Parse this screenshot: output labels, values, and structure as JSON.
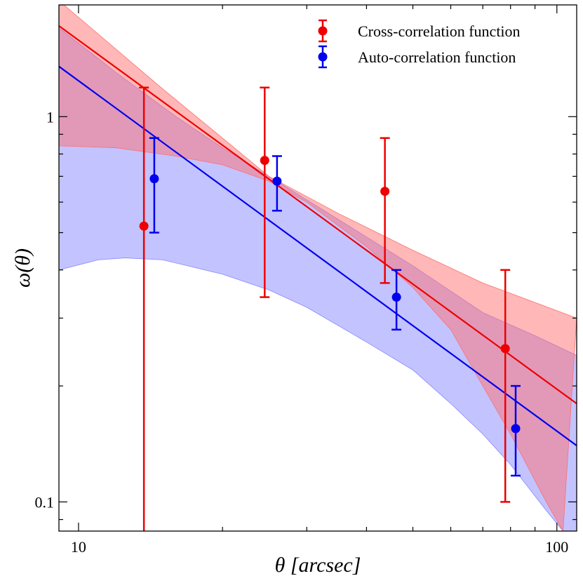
{
  "chart_data": {
    "type": "scatter",
    "xlabel": "θ [arcsec]",
    "ylabel": "ω(θ)",
    "xscale": "log",
    "yscale": "log",
    "xlim": [
      9.1,
      110
    ],
    "ylim": [
      0.084,
      1.95
    ],
    "grid": false,
    "legend_position": "top-right",
    "x_ticks": [
      {
        "value": 10,
        "label": "10"
      },
      {
        "value": 100,
        "label": "100"
      }
    ],
    "y_ticks": [
      {
        "value": 1,
        "label": "1"
      },
      {
        "value": 0.1,
        "label": "0.1"
      }
    ],
    "series": [
      {
        "name": "Cross-correlation function",
        "color": "#ee0000",
        "band_color": "#ff6f6f",
        "points": [
          {
            "x": 13.7,
            "y": 0.52,
            "yerr_low": 0.084,
            "yerr_high": 1.19
          },
          {
            "x": 24.5,
            "y": 0.77,
            "yerr_low": 0.34,
            "yerr_high": 1.19
          },
          {
            "x": 43.7,
            "y": 0.64,
            "yerr_low": 0.37,
            "yerr_high": 0.88
          },
          {
            "x": 78.0,
            "y": 0.25,
            "yerr_low": 0.1,
            "yerr_high": 0.4
          }
        ],
        "fit_line": [
          {
            "x": 9.1,
            "y": 1.72
          },
          {
            "x": 110,
            "y": 0.18
          }
        ],
        "band_upper": [
          {
            "x": 9.1,
            "y": 2.0
          },
          {
            "x": 15,
            "y": 1.18
          },
          {
            "x": 20,
            "y": 0.88
          },
          {
            "x": 25,
            "y": 0.7
          },
          {
            "x": 35,
            "y": 0.56
          },
          {
            "x": 50,
            "y": 0.45
          },
          {
            "x": 70,
            "y": 0.37
          },
          {
            "x": 110,
            "y": 0.3
          }
        ],
        "band_lower": [
          {
            "x": 9.1,
            "y": 0.84
          },
          {
            "x": 12,
            "y": 0.83
          },
          {
            "x": 16,
            "y": 0.79
          },
          {
            "x": 20,
            "y": 0.75
          },
          {
            "x": 25,
            "y": 0.68
          },
          {
            "x": 30,
            "y": 0.6
          },
          {
            "x": 40,
            "y": 0.46
          },
          {
            "x": 50,
            "y": 0.36
          },
          {
            "x": 60,
            "y": 0.28
          },
          {
            "x": 70,
            "y": 0.2
          },
          {
            "x": 80,
            "y": 0.15
          },
          {
            "x": 95,
            "y": 0.1
          },
          {
            "x": 103,
            "y": 0.084
          }
        ]
      },
      {
        "name": "Auto-correlation function",
        "color": "#0000ee",
        "band_color": "#8888ff",
        "points": [
          {
            "x": 14.4,
            "y": 0.69,
            "yerr_low": 0.5,
            "yerr_high": 0.88
          },
          {
            "x": 26.0,
            "y": 0.68,
            "yerr_low": 0.57,
            "yerr_high": 0.79
          },
          {
            "x": 46.2,
            "y": 0.34,
            "yerr_low": 0.28,
            "yerr_high": 0.4
          },
          {
            "x": 82.0,
            "y": 0.155,
            "yerr_low": 0.117,
            "yerr_high": 0.2
          }
        ],
        "fit_line": [
          {
            "x": 9.1,
            "y": 1.35
          },
          {
            "x": 110,
            "y": 0.14
          }
        ],
        "band_upper": [
          {
            "x": 9.1,
            "y": 1.7
          },
          {
            "x": 12,
            "y": 1.3
          },
          {
            "x": 16,
            "y": 1.0
          },
          {
            "x": 20,
            "y": 0.83
          },
          {
            "x": 25,
            "y": 0.7
          },
          {
            "x": 35,
            "y": 0.54
          },
          {
            "x": 50,
            "y": 0.41
          },
          {
            "x": 70,
            "y": 0.31
          },
          {
            "x": 90,
            "y": 0.27
          },
          {
            "x": 110,
            "y": 0.24
          }
        ],
        "band_lower": [
          {
            "x": 9.1,
            "y": 0.4
          },
          {
            "x": 11,
            "y": 0.425
          },
          {
            "x": 12.5,
            "y": 0.43
          },
          {
            "x": 15,
            "y": 0.425
          },
          {
            "x": 20,
            "y": 0.39
          },
          {
            "x": 25,
            "y": 0.355
          },
          {
            "x": 30,
            "y": 0.32
          },
          {
            "x": 40,
            "y": 0.26
          },
          {
            "x": 50,
            "y": 0.22
          },
          {
            "x": 60,
            "y": 0.18
          },
          {
            "x": 70,
            "y": 0.15
          },
          {
            "x": 80,
            "y": 0.125
          },
          {
            "x": 95,
            "y": 0.095
          },
          {
            "x": 110,
            "y": 0.076
          }
        ]
      }
    ]
  }
}
